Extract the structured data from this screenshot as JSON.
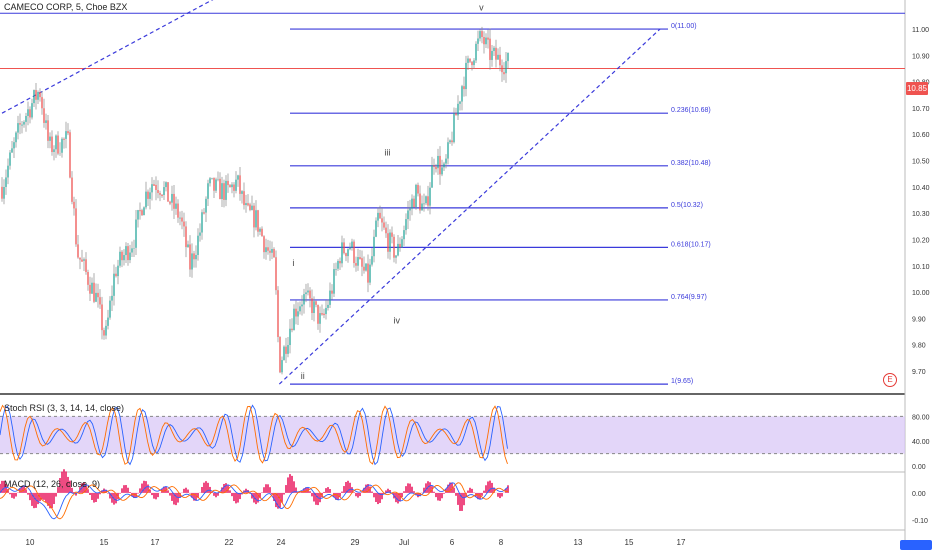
{
  "header": {
    "title": "CAMECO CORP, 5, Choe BZX"
  },
  "price_badge": "10.85",
  "event_badge": "E",
  "colors": {
    "fib_line": "#3a3adb",
    "up": "#26a69a",
    "down": "#ef5350",
    "candle": "#8a8a8a",
    "rsi_band": "#d7c4f7",
    "macd_hist": "#e91e63"
  },
  "chart_data": [
    {
      "type": "candlestick",
      "title": "CAMECO CORP, 5, Choe BZX",
      "ylim": [
        9.62,
        11.08
      ],
      "y_ticks": [
        "11.00",
        "10.90",
        "10.80",
        "10.70",
        "10.60",
        "10.50",
        "10.40",
        "10.30",
        "10.20",
        "10.10",
        "10.00",
        "9.90",
        "9.80",
        "9.70"
      ],
      "x_ticks": [
        "10",
        "15",
        "17",
        "22",
        "24",
        "29",
        "Jul",
        "6",
        "8",
        "13",
        "15",
        "17"
      ],
      "last_price": 10.85,
      "close_path": [
        [
          0,
          10.4
        ],
        [
          2,
          10.64
        ],
        [
          4,
          10.77
        ],
        [
          5,
          10.55
        ],
        [
          7,
          10.58
        ],
        [
          8,
          10.15
        ],
        [
          10,
          9.98
        ],
        [
          11,
          9.82
        ],
        [
          12,
          10.08
        ],
        [
          14,
          10.2
        ],
        [
          15,
          10.35
        ],
        [
          16,
          10.42
        ],
        [
          17,
          10.4
        ],
        [
          19,
          10.28
        ],
        [
          20,
          10.1
        ],
        [
          21,
          10.22
        ],
        [
          22,
          10.4
        ],
        [
          24,
          10.38
        ],
        [
          25,
          10.42
        ],
        [
          26,
          10.3
        ],
        [
          27,
          10.28
        ],
        [
          28,
          10.18
        ],
        [
          29,
          10.1
        ],
        [
          29.5,
          9.72
        ],
        [
          30,
          9.78
        ],
        [
          31,
          9.92
        ],
        [
          32,
          9.98
        ],
        [
          33,
          9.95
        ],
        [
          34,
          9.88
        ],
        [
          35,
          10.0
        ],
        [
          36,
          10.15
        ],
        [
          37,
          10.18
        ],
        [
          38,
          10.1
        ],
        [
          39,
          10.05
        ],
        [
          40,
          10.28
        ],
        [
          41,
          10.2
        ],
        [
          42,
          10.14
        ],
        [
          43,
          10.28
        ],
        [
          44,
          10.38
        ],
        [
          45,
          10.3
        ],
        [
          46,
          10.52
        ],
        [
          47,
          10.45
        ],
        [
          48,
          10.62
        ],
        [
          49,
          10.8
        ],
        [
          50,
          10.9
        ],
        [
          51,
          10.97
        ],
        [
          52,
          10.9
        ],
        [
          53,
          10.88
        ],
        [
          54,
          10.87
        ]
      ],
      "fib_levels": [
        {
          "label": "0(11.00)",
          "value": 11.0
        },
        {
          "label": "0.236(10.68)",
          "value": 10.68
        },
        {
          "label": "0.382(10.48)",
          "value": 10.48
        },
        {
          "label": "0.5(10.32)",
          "value": 10.32
        },
        {
          "label": "0.618(10.17)",
          "value": 10.17
        },
        {
          "label": "0.764(9.97)",
          "value": 9.97
        },
        {
          "label": "1(9.65)",
          "value": 9.65
        }
      ],
      "horizontal_lines": [
        {
          "name": "resistance",
          "value": 11.06,
          "color": "#3a3adb"
        },
        {
          "name": "last-price",
          "value": 10.85,
          "color": "#ef5350"
        }
      ],
      "wave_labels": [
        {
          "text": "i",
          "x": 31,
          "y": 10.1
        },
        {
          "text": "ii",
          "x": 32,
          "y": 9.67
        },
        {
          "text": "iii",
          "x": 41,
          "y": 10.52
        },
        {
          "text": "iv",
          "x": 42,
          "y": 9.88
        },
        {
          "text": "v",
          "x": 51,
          "y": 11.07
        }
      ],
      "trendlines": [
        {
          "name": "upper-trendline",
          "from": [
            0,
            10.68
          ],
          "to": [
            27,
            11.2
          ],
          "style": "dashed"
        },
        {
          "name": "lower-trendline",
          "from": [
            29.5,
            9.65
          ],
          "to": [
            70,
            11.0
          ],
          "style": "dashed"
        }
      ]
    },
    {
      "type": "line",
      "title": "Stoch RSI (3, 3, 14, 14, close)",
      "ylim": [
        0,
        100
      ],
      "y_ticks": [
        "80.00",
        "40.00",
        "0.00"
      ],
      "bands": [
        20,
        80
      ],
      "series": [
        {
          "name": "K",
          "color": "#2962ff"
        },
        {
          "name": "D",
          "color": "#ff6d00"
        }
      ]
    },
    {
      "type": "area",
      "title": "MACD (12, 26, close, 9)",
      "ylim": [
        -0.13,
        0.07
      ],
      "y_ticks": [
        "0.00",
        "-0.10"
      ],
      "series": [
        {
          "name": "MACD",
          "color": "#2962ff"
        },
        {
          "name": "Signal",
          "color": "#ff6d00"
        },
        {
          "name": "Histogram",
          "color": "#e91e63"
        }
      ]
    }
  ]
}
